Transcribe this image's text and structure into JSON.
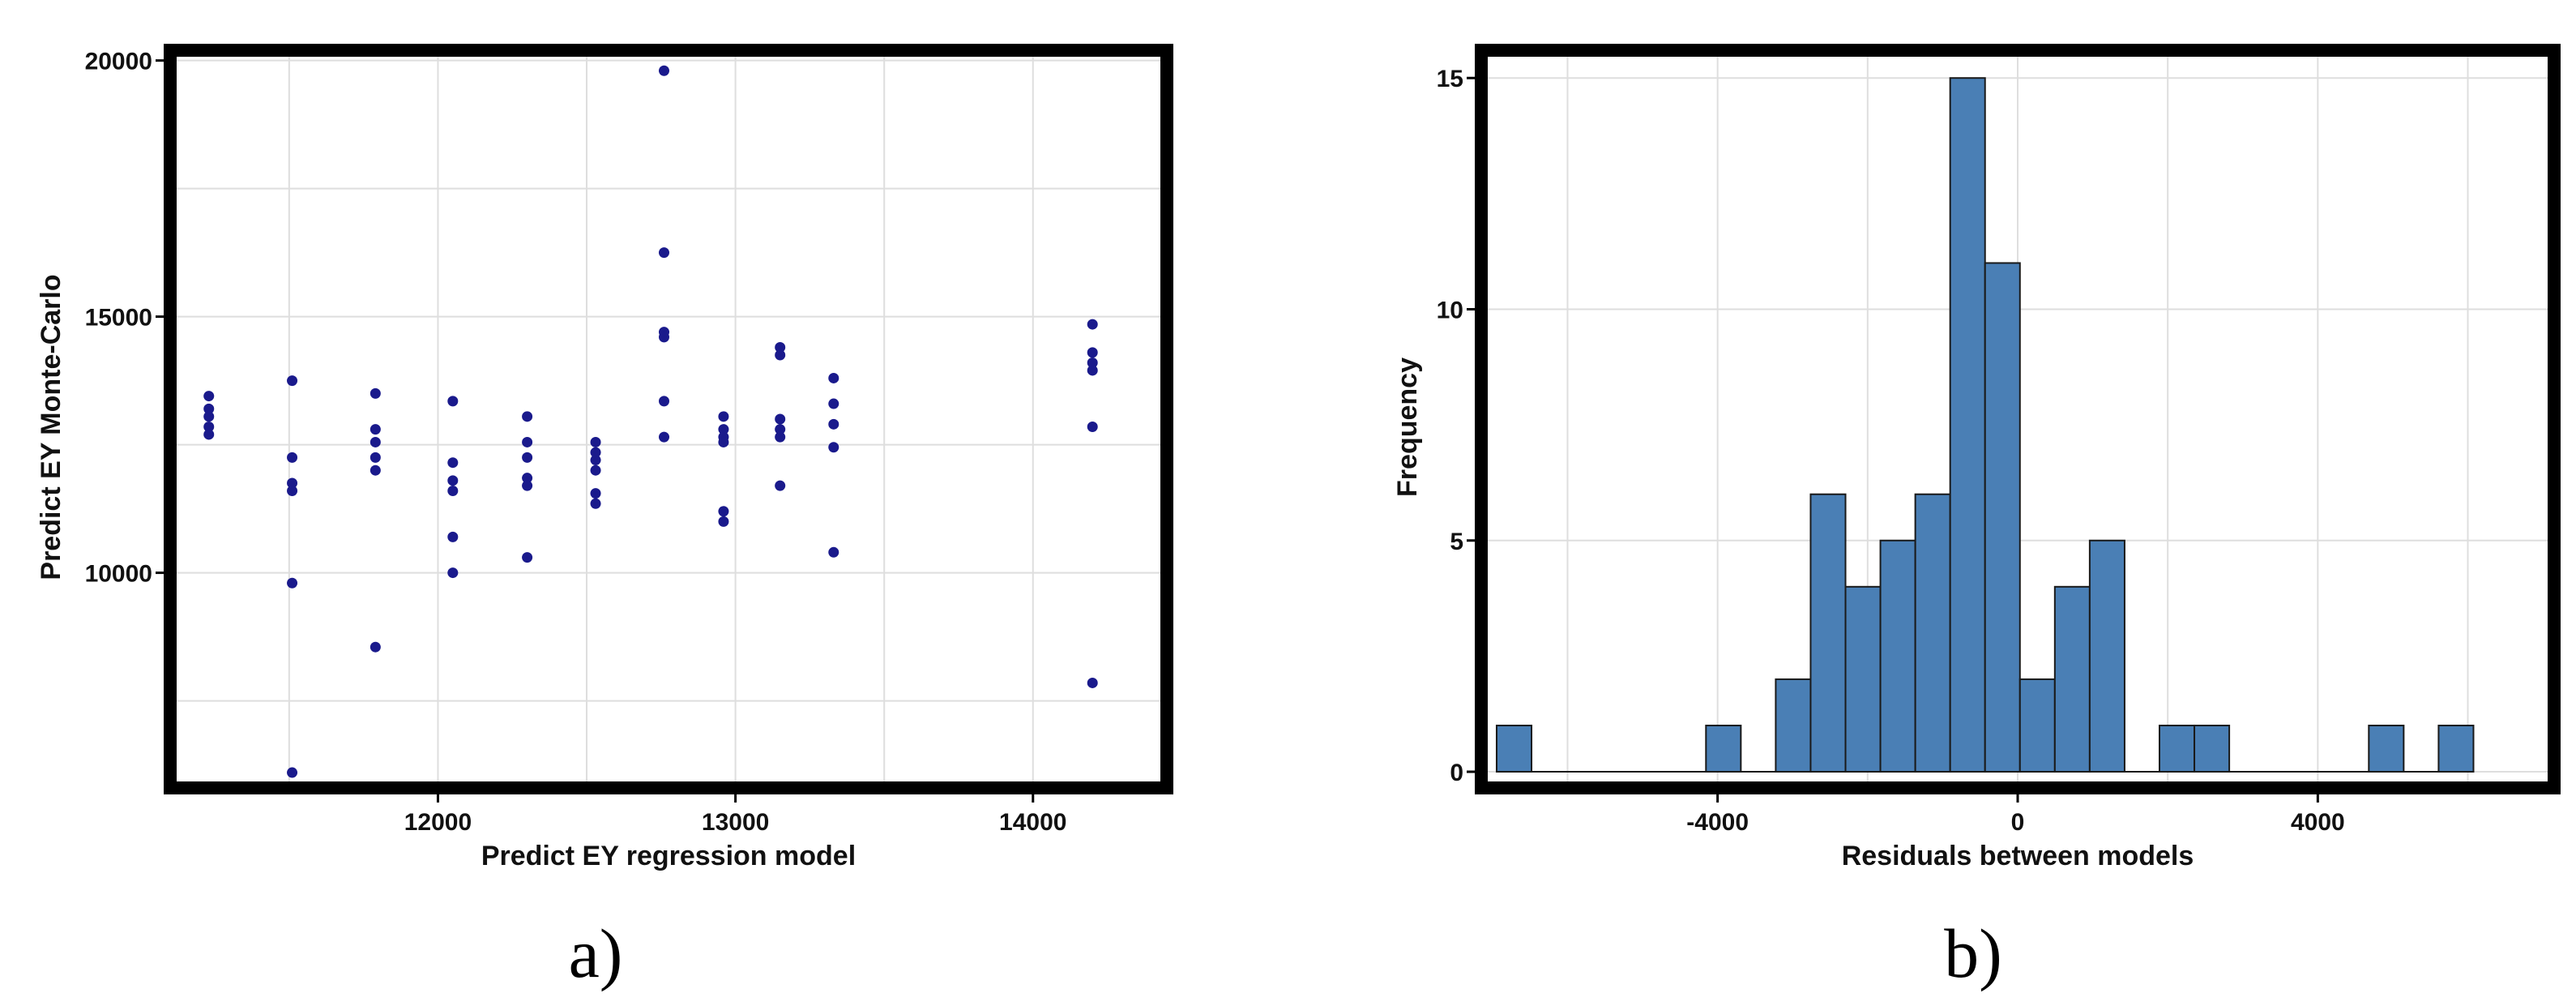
{
  "colors": {
    "scatter_point": "#1a1a8c",
    "histogram_bar": "#4a7fb5",
    "frame": "#000000"
  },
  "chart_data": [
    {
      "type": "scatter",
      "panel_label": "a)",
      "title": "",
      "xlabel": "Predict EY regression model",
      "ylabel": "Predict EY Monte-Carlo",
      "xlim": [
        11100,
        14450
      ],
      "ylim": [
        5800,
        20200
      ],
      "x_ticks": [
        12000,
        13000,
        14000
      ],
      "x_tick_labels": [
        "12000",
        "13000",
        "14000"
      ],
      "y_ticks": [
        10000,
        15000,
        20000
      ],
      "y_tick_labels": [
        "10000",
        "15000",
        "20000"
      ],
      "grid": true,
      "points": [
        {
          "x": 11230,
          "y": 13450
        },
        {
          "x": 11230,
          "y": 13200
        },
        {
          "x": 11230,
          "y": 13050
        },
        {
          "x": 11230,
          "y": 12850
        },
        {
          "x": 11230,
          "y": 12700
        },
        {
          "x": 11510,
          "y": 13750
        },
        {
          "x": 11510,
          "y": 12250
        },
        {
          "x": 11510,
          "y": 11750
        },
        {
          "x": 11510,
          "y": 11600
        },
        {
          "x": 11510,
          "y": 9800
        },
        {
          "x": 11510,
          "y": 6100
        },
        {
          "x": 11790,
          "y": 13500
        },
        {
          "x": 11790,
          "y": 12800
        },
        {
          "x": 11790,
          "y": 12550
        },
        {
          "x": 11790,
          "y": 12250
        },
        {
          "x": 11790,
          "y": 12000
        },
        {
          "x": 11790,
          "y": 8550
        },
        {
          "x": 12050,
          "y": 13350
        },
        {
          "x": 12050,
          "y": 12150
        },
        {
          "x": 12050,
          "y": 11800
        },
        {
          "x": 12050,
          "y": 11600
        },
        {
          "x": 12050,
          "y": 10700
        },
        {
          "x": 12050,
          "y": 10000
        },
        {
          "x": 12300,
          "y": 13050
        },
        {
          "x": 12300,
          "y": 12550
        },
        {
          "x": 12300,
          "y": 12250
        },
        {
          "x": 12300,
          "y": 11850
        },
        {
          "x": 12300,
          "y": 11700
        },
        {
          "x": 12300,
          "y": 10300
        },
        {
          "x": 12530,
          "y": 12550
        },
        {
          "x": 12530,
          "y": 12350
        },
        {
          "x": 12530,
          "y": 12200
        },
        {
          "x": 12530,
          "y": 12000
        },
        {
          "x": 12530,
          "y": 11550
        },
        {
          "x": 12530,
          "y": 11350
        },
        {
          "x": 12760,
          "y": 19800
        },
        {
          "x": 12760,
          "y": 16250
        },
        {
          "x": 12760,
          "y": 14700
        },
        {
          "x": 12760,
          "y": 14600
        },
        {
          "x": 12760,
          "y": 13350
        },
        {
          "x": 12760,
          "y": 12650
        },
        {
          "x": 12960,
          "y": 13050
        },
        {
          "x": 12960,
          "y": 12800
        },
        {
          "x": 12960,
          "y": 12650
        },
        {
          "x": 12960,
          "y": 12550
        },
        {
          "x": 12960,
          "y": 11200
        },
        {
          "x": 12960,
          "y": 11000
        },
        {
          "x": 13150,
          "y": 14400
        },
        {
          "x": 13150,
          "y": 14250
        },
        {
          "x": 13150,
          "y": 13000
        },
        {
          "x": 13150,
          "y": 12800
        },
        {
          "x": 13150,
          "y": 12650
        },
        {
          "x": 13150,
          "y": 11700
        },
        {
          "x": 13330,
          "y": 13800
        },
        {
          "x": 13330,
          "y": 13300
        },
        {
          "x": 13330,
          "y": 12900
        },
        {
          "x": 13330,
          "y": 12450
        },
        {
          "x": 13330,
          "y": 10400
        },
        {
          "x": 14200,
          "y": 14850
        },
        {
          "x": 14200,
          "y": 14300
        },
        {
          "x": 14200,
          "y": 14100
        },
        {
          "x": 14200,
          "y": 13950
        },
        {
          "x": 14200,
          "y": 12850
        },
        {
          "x": 14200,
          "y": 7850
        }
      ]
    },
    {
      "type": "bar",
      "panel_label": "b)",
      "title": "",
      "xlabel": "Residuals between models",
      "ylabel": "Frequency",
      "xlim": [
        -7150,
        7150
      ],
      "ylim": [
        -0.35,
        15.6
      ],
      "x_ticks": [
        -4000,
        0,
        4000
      ],
      "x_tick_labels": [
        "-4000",
        "0",
        "4000"
      ],
      "y_ticks": [
        0,
        5,
        10,
        15
      ],
      "y_tick_labels": [
        "0",
        "5",
        "10",
        "15"
      ],
      "grid": true,
      "bin_width": 465,
      "bin_start": -6945,
      "counts": [
        1,
        0,
        0,
        0,
        0,
        0,
        1,
        0,
        2,
        6,
        4,
        5,
        6,
        15,
        11,
        2,
        4,
        5,
        0,
        1,
        1,
        0,
        0,
        0,
        0,
        1,
        0,
        1
      ]
    }
  ]
}
